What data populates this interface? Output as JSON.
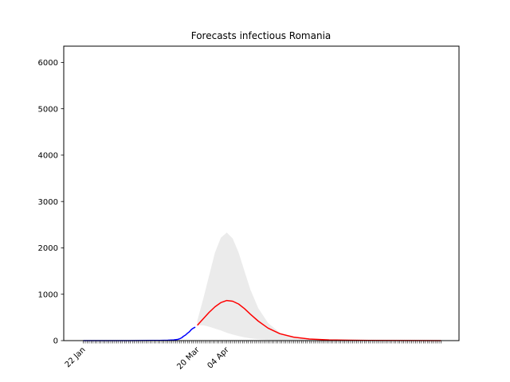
{
  "chart_data": {
    "type": "line",
    "title": "Forecasts infectious Romania",
    "xlabel": "",
    "ylabel": "",
    "ylim": [
      0,
      6350
    ],
    "yticks": [
      0,
      1000,
      2000,
      3000,
      4000,
      5000,
      6000
    ],
    "x_tick_labels": [
      {
        "date": "2020-01-22",
        "label": "22 Jan"
      },
      {
        "date": "2020-03-20",
        "label": "20 Mar"
      },
      {
        "date": "2020-04-04",
        "label": "04 Apr"
      }
    ],
    "grid": false,
    "legend": false,
    "colors": {
      "observed": "#0000ff",
      "forecast": "#ff0000",
      "band": "#ebebeb",
      "ticks": "#000000"
    },
    "series": [
      {
        "role": "observed",
        "x": [
          "2020-01-22",
          "2020-02-15",
          "2020-02-26",
          "2020-03-01",
          "2020-03-05",
          "2020-03-08",
          "2020-03-10",
          "2020-03-11",
          "2020-03-12",
          "2020-03-13",
          "2020-03-14",
          "2020-03-15",
          "2020-03-16",
          "2020-03-17",
          "2020-03-18",
          "2020-03-19"
        ],
        "y": [
          0,
          0,
          3,
          4,
          8,
          15,
          25,
          40,
          60,
          95,
          120,
          160,
          190,
          240,
          270,
          290
        ]
      },
      {
        "role": "forecast",
        "x": [
          "2020-03-20",
          "2020-03-23",
          "2020-03-26",
          "2020-03-29",
          "2020-04-01",
          "2020-04-04",
          "2020-04-07",
          "2020-04-10",
          "2020-04-13",
          "2020-04-16",
          "2020-04-20",
          "2020-04-25",
          "2020-05-01",
          "2020-05-08",
          "2020-05-16",
          "2020-05-26",
          "2020-06-05",
          "2020-06-15",
          "2020-07-05",
          "2020-07-22"
        ],
        "y": [
          330,
          470,
          610,
          730,
          820,
          865,
          850,
          790,
          690,
          570,
          420,
          270,
          150,
          75,
          35,
          15,
          8,
          4,
          1,
          0
        ]
      },
      {
        "role": "band",
        "x": [
          "2020-03-20",
          "2020-03-23",
          "2020-03-26",
          "2020-03-29",
          "2020-04-01",
          "2020-04-04",
          "2020-04-07",
          "2020-04-10",
          "2020-04-13",
          "2020-04-16",
          "2020-04-20",
          "2020-04-25",
          "2020-05-01",
          "2020-05-08",
          "2020-05-16",
          "2020-05-26",
          "2020-06-05",
          "2020-06-15",
          "2020-07-05",
          "2020-07-22"
        ],
        "upper": [
          430,
          900,
          1400,
          1900,
          2220,
          2330,
          2200,
          1900,
          1500,
          1100,
          700,
          380,
          170,
          75,
          35,
          15,
          8,
          4,
          1,
          0
        ],
        "lower": [
          330,
          330,
          300,
          260,
          220,
          170,
          130,
          100,
          70,
          50,
          30,
          15,
          8,
          4,
          2,
          1,
          0,
          0,
          0,
          0
        ]
      }
    ]
  }
}
